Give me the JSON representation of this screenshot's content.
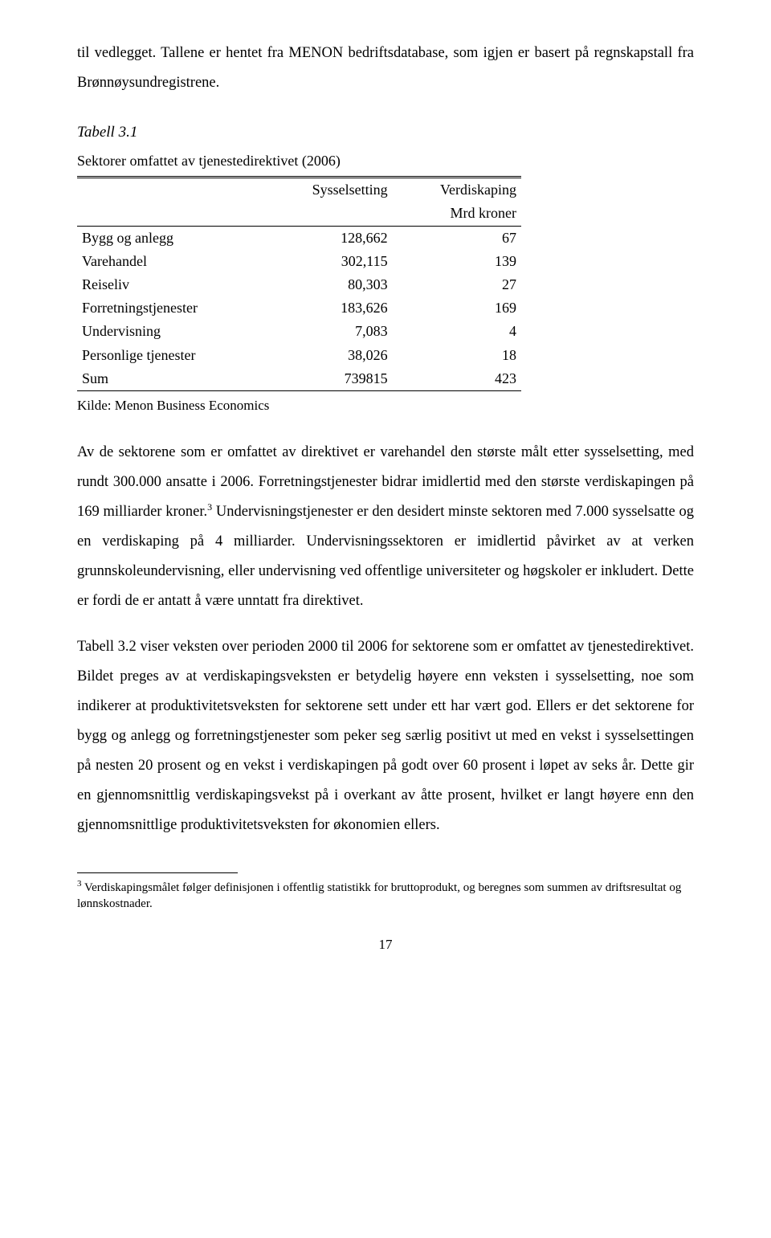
{
  "intro": "til vedlegget. Tallene er hentet fra MENON bedriftsdatabase, som igjen er basert på regnskapstall fra Brønnøysundregistrene.",
  "table": {
    "title": "Tabell 3.1",
    "subtitle": "Sektorer omfattet av tjenestedirektivet (2006)",
    "col1": "Sysselsetting",
    "col2": "Verdiskaping",
    "col2_unit": "Mrd kroner",
    "rows": [
      {
        "label": "Bygg og anlegg",
        "c1": "128,662",
        "c2": "67"
      },
      {
        "label": "Varehandel",
        "c1": "302,115",
        "c2": "139"
      },
      {
        "label": "Reiseliv",
        "c1": "80,303",
        "c2": "27"
      },
      {
        "label": "Forretningstjenester",
        "c1": "183,626",
        "c2": "169"
      },
      {
        "label": "Undervisning",
        "c1": "7,083",
        "c2": "4"
      },
      {
        "label": "Personlige tjenester",
        "c1": "38,026",
        "c2": "18"
      },
      {
        "label": "Sum",
        "c1": "739815",
        "c2": "423"
      }
    ],
    "source": "Kilde: Menon Business Economics"
  },
  "p1a": "Av de sektorene som er omfattet av direktivet er varehandel den største målt etter sysselsetting, med rundt 300.000 ansatte i 2006. Forretningstjenester bidrar imidlertid med den største verdiskapingen på 169 milliarder kroner.",
  "p1b": " Undervisningstjenester er den desidert minste sektoren med 7.000 sysselsatte og en verdiskaping på 4 milliarder. Undervisningssektoren er imidlertid påvirket av at verken grunnskoleundervisning, eller undervisning ved offentlige universiteter og høgskoler er inkludert. Dette er fordi de er antatt å være unntatt fra direktivet.",
  "fn_marker": "3",
  "p2": "Tabell 3.2 viser veksten over perioden 2000 til 2006 for sektorene som er omfattet av tjenestedirektivet. Bildet preges av at verdiskapingsveksten er betydelig høyere enn veksten i sysselsetting, noe som indikerer at produktivitetsveksten for sektorene sett under ett har vært god. Ellers er det sektorene for bygg og anlegg og forretningstjenester som peker seg særlig positivt ut med en vekst i sysselsettingen på nesten 20 prosent og en vekst i verdiskapingen på godt over 60 prosent i løpet av seks år. Dette gir en gjennomsnittlig verdiskapingsvekst på i overkant av åtte prosent, hvilket er langt høyere enn den gjennomsnittlige produktivitetsveksten for økonomien ellers.",
  "footnote": " Verdiskapingsmålet følger definisjonen i offentlig statistikk for bruttoprodukt, og beregnes som summen av driftsresultat og lønnskostnader.",
  "pagenum": "17"
}
